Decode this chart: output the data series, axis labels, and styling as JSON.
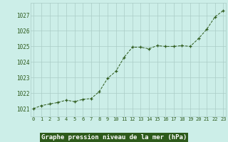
{
  "x": [
    0,
    1,
    2,
    3,
    4,
    5,
    6,
    7,
    8,
    9,
    10,
    11,
    12,
    13,
    14,
    15,
    16,
    17,
    18,
    19,
    20,
    21,
    22,
    23
  ],
  "y": [
    1021.0,
    1021.2,
    1021.3,
    1021.4,
    1021.55,
    1021.45,
    1021.6,
    1021.65,
    1022.1,
    1022.95,
    1023.4,
    1024.3,
    1024.95,
    1024.95,
    1024.85,
    1025.05,
    1025.0,
    1025.0,
    1025.05,
    1025.0,
    1025.5,
    1026.1,
    1026.9,
    1027.3
  ],
  "line_color": "#2d5a1b",
  "marker_color": "#2d5a1b",
  "background_color": "#cceee8",
  "grid_color": "#aaccc6",
  "ylabel_ticks": [
    1021,
    1022,
    1023,
    1024,
    1025,
    1026,
    1027
  ],
  "xlabel_ticks": [
    0,
    1,
    2,
    3,
    4,
    5,
    6,
    7,
    8,
    9,
    10,
    11,
    12,
    13,
    14,
    15,
    16,
    17,
    18,
    19,
    20,
    21,
    22,
    23
  ],
  "xlabel": "Graphe pression niveau de la mer (hPa)",
  "tick_color": "#2d5a1b",
  "ylim": [
    1020.5,
    1027.8
  ],
  "xlim": [
    -0.3,
    23.3
  ],
  "label_bg": "#2d5a1b",
  "label_fg": "#ffffff"
}
